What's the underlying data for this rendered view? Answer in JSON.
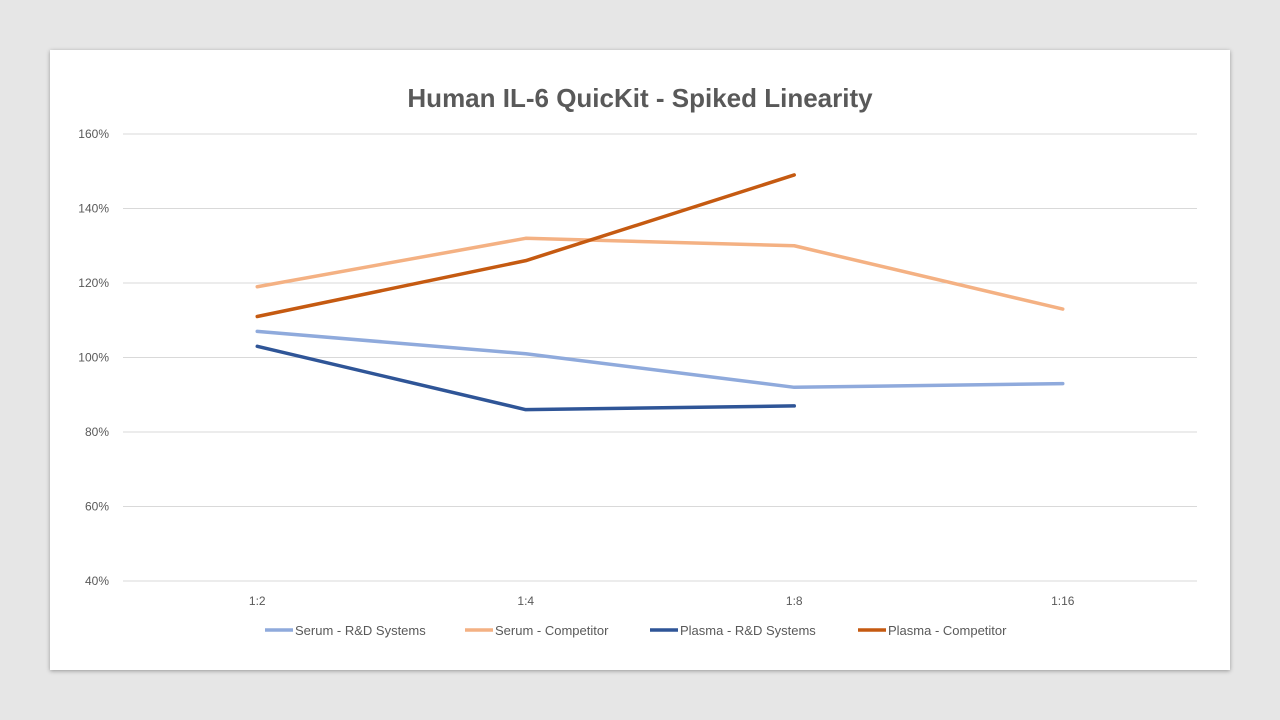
{
  "chart_data": {
    "type": "line",
    "title": "Human IL-6 QuicKit - Spiked Linearity",
    "xlabel": "",
    "ylabel": "",
    "categories": [
      "1:2",
      "1:4",
      "1:8",
      "1:16"
    ],
    "ylim": [
      40,
      160
    ],
    "yticks": [
      40,
      60,
      80,
      100,
      120,
      140,
      160
    ],
    "ytick_suffix": "%",
    "grid": true,
    "legend_position": "bottom",
    "series": [
      {
        "name": "Serum - R&D Systems",
        "color": "#8faadc",
        "values": [
          107,
          101,
          92,
          93
        ]
      },
      {
        "name": "Serum - Competitor",
        "color": "#f4b183",
        "values": [
          119,
          132,
          130,
          113
        ]
      },
      {
        "name": "Plasma - R&D Systems",
        "color": "#2f5597",
        "values": [
          103,
          86,
          87,
          null
        ]
      },
      {
        "name": "Plasma - Competitor",
        "color": "#c55a11",
        "values": [
          111,
          126,
          149,
          null
        ]
      }
    ]
  }
}
